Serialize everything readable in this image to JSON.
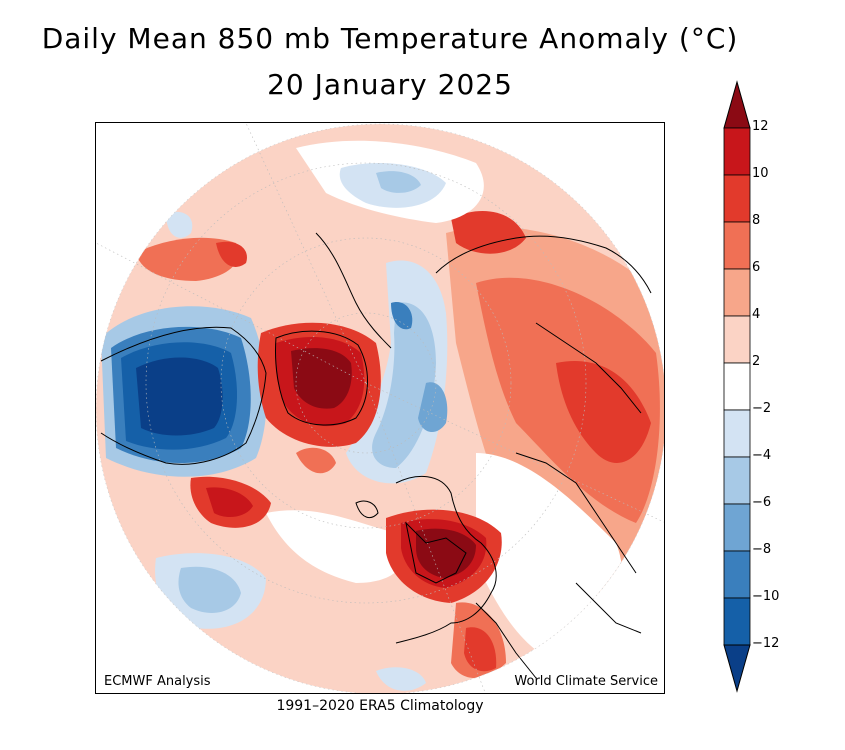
{
  "title": "Daily Mean 850 mb Temperature Anomaly (°C)",
  "date": "20 January 2025",
  "credits": {
    "left": "ECMWF Analysis",
    "right": "World Climate Service"
  },
  "footer": "1991–2020 ERA5 Climatology",
  "colorbar": {
    "units": "°C",
    "levels": [
      12,
      10,
      8,
      6,
      4,
      2,
      -2,
      -4,
      -6,
      -8,
      -10,
      -12
    ],
    "labels": [
      "12",
      "10",
      "8",
      "6",
      "4",
      "2",
      "−2",
      "−4",
      "−6",
      "−8",
      "−10",
      "−12"
    ],
    "colors": [
      "#8b0a14",
      "#c8161b",
      "#e23a2c",
      "#f07055",
      "#f7a68a",
      "#fbd3c5",
      "#ffffff",
      "#d3e3f3",
      "#a7c9e6",
      "#6fa5d3",
      "#3a7fbd",
      "#1560a8",
      "#0a3f88"
    ]
  },
  "map": {
    "projection": "north-polar-stereographic",
    "colors": {
      "ocean_bg": "#ffffff",
      "warm_light": "#fbd3c5",
      "warm_mid": "#f7a68a",
      "warm": "#f07055",
      "warm_strong": "#e23a2c",
      "warm_max": "#c8161b",
      "warm_extreme": "#8b0a14",
      "cold_light": "#d3e3f3",
      "cold_mid": "#a7c9e6",
      "cold": "#6fa5d3",
      "cold_strong": "#3a7fbd",
      "cold_max": "#1560a8",
      "cold_extreme": "#0a3f88",
      "coast": "#000000",
      "grid": "#bbbbbb"
    }
  }
}
